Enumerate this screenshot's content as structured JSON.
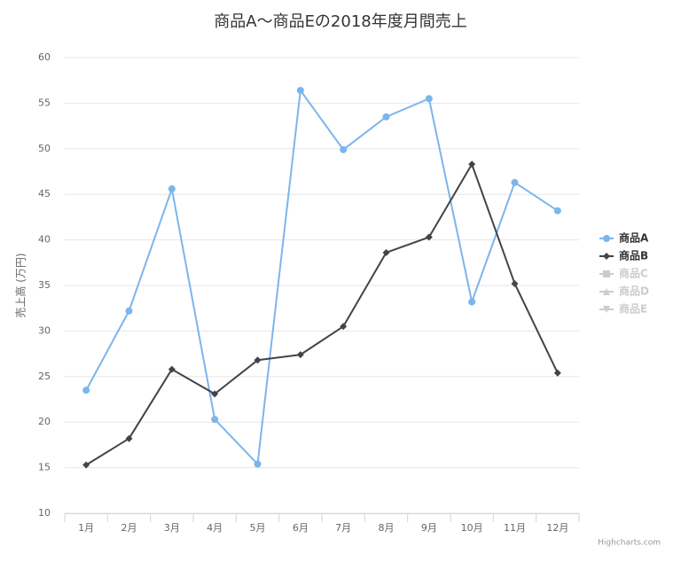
{
  "chart_data": {
    "type": "line",
    "title": "商品A～商品Eの2018年度月間売上",
    "y_label": "売上高 (万円)",
    "credits": "Highcharts.com",
    "categories": [
      "1月",
      "2月",
      "3月",
      "4月",
      "5月",
      "6月",
      "7月",
      "8月",
      "9月",
      "10月",
      "11月",
      "12月"
    ],
    "ylim": [
      10,
      60
    ],
    "yticks": [
      10,
      15,
      20,
      25,
      30,
      35,
      40,
      45,
      50,
      55,
      60
    ],
    "grid": true,
    "legend": "right",
    "series": [
      {
        "name": "商品A",
        "color": "#7cb5ec",
        "marker": "circle",
        "visible": true,
        "values": [
          23.5,
          32.2,
          45.6,
          20.3,
          15.4,
          56.4,
          49.9,
          53.5,
          55.5,
          33.2,
          46.3,
          43.2
        ]
      },
      {
        "name": "商品B",
        "color": "#434348",
        "marker": "diamond",
        "visible": true,
        "values": [
          15.3,
          18.2,
          25.8,
          23.1,
          26.8,
          27.4,
          30.5,
          38.6,
          40.3,
          48.3,
          35.2,
          25.4
        ]
      },
      {
        "name": "商品C",
        "color": "#cccccc",
        "marker": "square",
        "visible": false
      },
      {
        "name": "商品D",
        "color": "#cccccc",
        "marker": "triangle",
        "visible": false
      },
      {
        "name": "商品E",
        "color": "#cccccc",
        "marker": "triangle-down",
        "visible": false
      }
    ]
  }
}
